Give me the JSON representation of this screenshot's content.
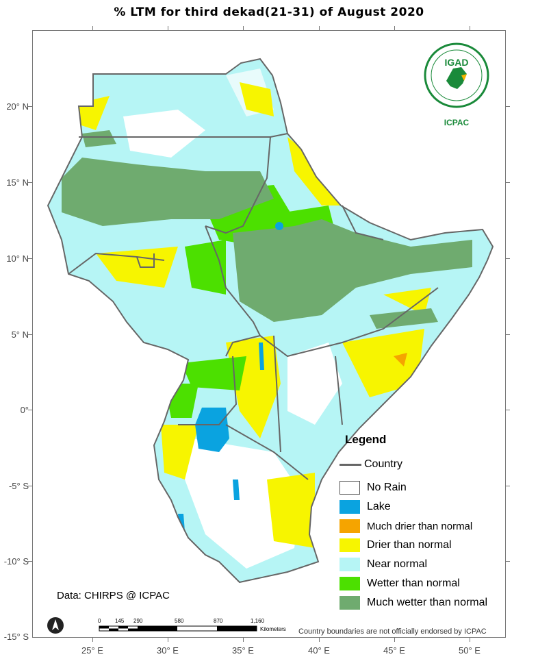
{
  "title": "% LTM  for third dekad(21-31) of August 2020",
  "lat_labels": [
    "20° N",
    "15° N",
    "10° N",
    "5° N",
    "0°",
    "-5° S",
    "-10° S",
    "-15° S"
  ],
  "lon_labels": [
    "25° E",
    "30° E",
    "35° E",
    "40° E",
    "45° E",
    "50° E"
  ],
  "legend": {
    "title": "Legend",
    "country_label": "Country",
    "items": [
      {
        "label": "No Rain",
        "color": "#ffffff"
      },
      {
        "label": "Lake",
        "color": "#0aa3e0"
      },
      {
        "label": "Much drier than normal",
        "color": "#f5a400"
      },
      {
        "label": "Drier than normal",
        "color": "#f7f500"
      },
      {
        "label": "Near normal",
        "color": "#b6f5f5"
      },
      {
        "label": "Wetter than normal",
        "color": "#4ce000"
      },
      {
        "label": "Much wetter than normal",
        "color": "#6fab6f"
      }
    ]
  },
  "logo": {
    "org": "IGAD",
    "sub": "ICPAC",
    "brand_color": "#1a8a3a"
  },
  "credit": "Data: CHIRPS @ ICPAC",
  "disclaimer": "Country boundaries are not officially endorsed by ICPAC",
  "scale": {
    "values": [
      "0",
      "145",
      "290",
      "580",
      "870",
      "1,160"
    ],
    "unit": "Kilometers"
  }
}
